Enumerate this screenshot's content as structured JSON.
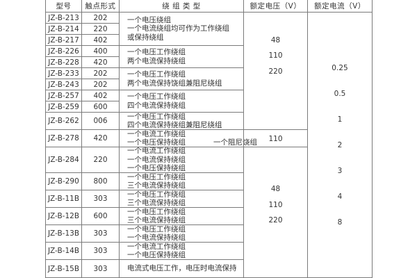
{
  "headers": [
    "型号",
    "触点形式",
    "绕 组 类 型",
    "额定电压（V）",
    "额定电流（V）"
  ],
  "rows": [
    {
      "model": "JZ-B-213",
      "contact": "202"
    },
    {
      "model": "JZ-B-214",
      "contact": "220"
    },
    {
      "model": "JZ-B-217",
      "contact": "402"
    },
    {
      "model": "JZ-B-226",
      "contact": "400"
    },
    {
      "model": "JZ-B-228",
      "contact": "420"
    },
    {
      "model": "JZ-B-233",
      "contact": "202"
    },
    {
      "model": "JZ-B-243",
      "contact": "202"
    },
    {
      "model": "JZ-B-257",
      "contact": "402"
    },
    {
      "model": "JZ-B-259",
      "contact": "600"
    },
    {
      "model": "JZ-B-262",
      "contact": "006"
    },
    {
      "model": "JZ-B-278",
      "contact": "420"
    },
    {
      "model": "JZ-B-284",
      "contact": "220"
    },
    {
      "model": "JZ-B-290",
      "contact": "800"
    },
    {
      "model": "JZ-B-11B",
      "contact": "303"
    },
    {
      "model": "JZ-B-12B",
      "contact": "600"
    },
    {
      "model": "JZ-B-13B",
      "contact": "303"
    },
    {
      "model": "JZ-B-14B",
      "contact": "303"
    },
    {
      "model": "JZ-B-15B",
      "contact": "303"
    }
  ],
  "windings": [
    {
      "lines": [
        "一个电压绕组",
        "一个电流绕组均可作为工作绕组",
        "或保持绕组"
      ]
    },
    {
      "lines": [
        "一个电压工作绕组",
        "两个电流保持绕组"
      ]
    },
    {
      "lines": [
        "一个电压工作绕组",
        "两个电流保持饶组兼阻尼绕组"
      ]
    },
    {
      "lines": [
        "一个电压工作绕组",
        "四个电流保持绕组"
      ]
    },
    {
      "lines": [
        "一个电压工作绕组",
        "四个电流保持绕组兼阻尼绕组"
      ]
    },
    {
      "lines": [
        "一个电流工作绕组",
        "一个电压保持绕组"
      ],
      "extra": "一个阻尼饶组"
    },
    {
      "lines": [
        "一个电流工作绕组",
        "一个电流保持绕组",
        "一个电压保持绕组"
      ]
    },
    {
      "lines": [
        "一个电压工作绕组",
        "三个电流保持绕组"
      ]
    },
    {
      "lines": [
        "一个电压工作绕组",
        "三个电流保持绕组"
      ]
    },
    {
      "lines": [
        "一个电压工作绕组",
        "三个电流保持绕组"
      ]
    },
    {
      "lines": [
        "一个电压工作绕组",
        "一个电流保持绕组"
      ]
    },
    {
      "lines": [
        "一个电流工作绕组",
        "一个电压保持绕组"
      ]
    },
    {
      "lines": [
        "电流式电压工作，电压时电流保持"
      ]
    }
  ],
  "voltage_groups": [
    {
      "values": [
        "48",
        "110",
        "220"
      ]
    },
    {
      "values": [
        "110"
      ]
    },
    {
      "values": [
        "48",
        "110",
        "220"
      ]
    }
  ],
  "currents": [
    "0.25",
    "0.5",
    "1",
    "2",
    "3",
    "4",
    "8"
  ]
}
